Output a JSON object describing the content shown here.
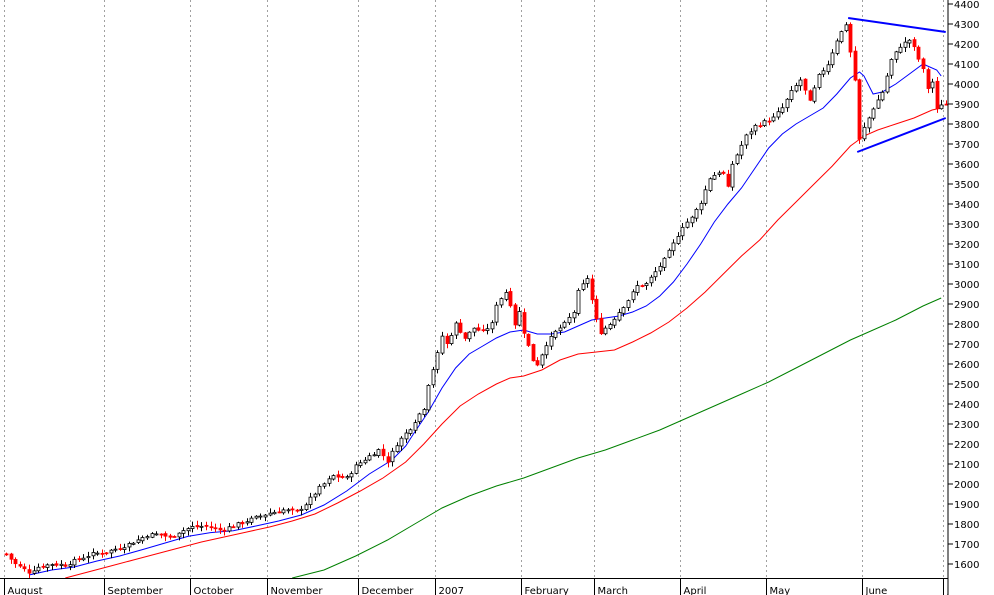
{
  "chart_data": {
    "type": "candlestick",
    "title": "",
    "xlabel": "",
    "ylabel": "",
    "y_axis_side": "right",
    "ylim": [
      1530,
      4420
    ],
    "y_ticks": [
      1600,
      1700,
      1800,
      1900,
      2000,
      2100,
      2200,
      2300,
      2400,
      2500,
      2600,
      2700,
      2800,
      2900,
      3000,
      3100,
      3200,
      3300,
      3400,
      3500,
      3600,
      3700,
      3800,
      3900,
      4000,
      4100,
      4200,
      4300,
      4400
    ],
    "grid": "vertical dotted lines at month boundaries",
    "x_labels": [
      {
        "label": "August",
        "bar": 0
      },
      {
        "label": "September",
        "bar": 22
      },
      {
        "label": "October",
        "bar": 41
      },
      {
        "label": "November",
        "bar": 58
      },
      {
        "label": "December",
        "bar": 78
      },
      {
        "label": "2007",
        "bar": 95
      },
      {
        "label": "February",
        "bar": 114
      },
      {
        "label": "March",
        "bar": 130
      },
      {
        "label": "April",
        "bar": 149
      },
      {
        "label": "May",
        "bar": 168
      },
      {
        "label": "June",
        "bar": 189
      },
      {
        "label": "J",
        "bar": 207
      }
    ],
    "bar_count": 208,
    "price_path": [
      [
        0,
        1650
      ],
      [
        2,
        1600
      ],
      [
        5,
        1560
      ],
      [
        7,
        1585
      ],
      [
        10,
        1600
      ],
      [
        13,
        1595
      ],
      [
        16,
        1625
      ],
      [
        19,
        1650
      ],
      [
        22,
        1660
      ],
      [
        26,
        1690
      ],
      [
        29,
        1720
      ],
      [
        31,
        1745
      ],
      [
        34,
        1750
      ],
      [
        36,
        1730
      ],
      [
        38,
        1760
      ],
      [
        41,
        1785
      ],
      [
        44,
        1790
      ],
      [
        47,
        1770
      ],
      [
        50,
        1790
      ],
      [
        53,
        1815
      ],
      [
        56,
        1840
      ],
      [
        58,
        1855
      ],
      [
        61,
        1870
      ],
      [
        64,
        1860
      ],
      [
        66,
        1900
      ],
      [
        69,
        1980
      ],
      [
        72,
        2040
      ],
      [
        75,
        2030
      ],
      [
        77,
        2090
      ],
      [
        80,
        2140
      ],
      [
        82,
        2170
      ],
      [
        84,
        2115
      ],
      [
        86,
        2200
      ],
      [
        89,
        2280
      ],
      [
        91,
        2350
      ],
      [
        92,
        2380
      ],
      [
        93,
        2500
      ],
      [
        95,
        2650
      ],
      [
        96,
        2740
      ],
      [
        97,
        2700
      ],
      [
        99,
        2800
      ],
      [
        101,
        2730
      ],
      [
        103,
        2780
      ],
      [
        105,
        2760
      ],
      [
        107,
        2800
      ],
      [
        108,
        2900
      ],
      [
        110,
        2960
      ],
      [
        111,
        2900
      ],
      [
        112,
        2800
      ],
      [
        113,
        2860
      ],
      [
        114,
        2760
      ],
      [
        116,
        2620
      ],
      [
        117,
        2600
      ],
      [
        119,
        2700
      ],
      [
        121,
        2760
      ],
      [
        123,
        2800
      ],
      [
        125,
        2860
      ],
      [
        126,
        2960
      ],
      [
        128,
        3030
      ],
      [
        129,
        2920
      ],
      [
        130,
        2820
      ],
      [
        131,
        2760
      ],
      [
        133,
        2800
      ],
      [
        135,
        2860
      ],
      [
        137,
        2920
      ],
      [
        139,
        2990
      ],
      [
        141,
        3000
      ],
      [
        143,
        3060
      ],
      [
        145,
        3120
      ],
      [
        147,
        3200
      ],
      [
        149,
        3290
      ],
      [
        151,
        3330
      ],
      [
        153,
        3410
      ],
      [
        155,
        3530
      ],
      [
        157,
        3560
      ],
      [
        158,
        3550
      ],
      [
        159,
        3480
      ],
      [
        160,
        3600
      ],
      [
        163,
        3740
      ],
      [
        165,
        3790
      ],
      [
        167,
        3810
      ],
      [
        169,
        3830
      ],
      [
        171,
        3880
      ],
      [
        173,
        3960
      ],
      [
        175,
        4020
      ],
      [
        177,
        3910
      ],
      [
        179,
        4040
      ],
      [
        181,
        4100
      ],
      [
        183,
        4220
      ],
      [
        185,
        4300
      ],
      [
        186,
        4160
      ],
      [
        187,
        4020
      ],
      [
        188,
        3720
      ],
      [
        189,
        3780
      ],
      [
        191,
        3880
      ],
      [
        193,
        3960
      ],
      [
        195,
        4120
      ],
      [
        197,
        4190
      ],
      [
        199,
        4220
      ],
      [
        200,
        4180
      ],
      [
        202,
        4070
      ],
      [
        203,
        3980
      ],
      [
        204,
        4010
      ],
      [
        205,
        3870
      ],
      [
        206,
        3900
      ]
    ],
    "moving_averages": [
      {
        "color": "#0000ff",
        "points": [
          [
            5,
            1545
          ],
          [
            10,
            1570
          ],
          [
            15,
            1585
          ],
          [
            20,
            1615
          ],
          [
            25,
            1640
          ],
          [
            30,
            1672
          ],
          [
            35,
            1705
          ],
          [
            40,
            1738
          ],
          [
            45,
            1757
          ],
          [
            50,
            1766
          ],
          [
            55,
            1790
          ],
          [
            60,
            1815
          ],
          [
            65,
            1845
          ],
          [
            70,
            1895
          ],
          [
            75,
            1965
          ],
          [
            80,
            2050
          ],
          [
            85,
            2120
          ],
          [
            88,
            2190
          ],
          [
            90,
            2260
          ],
          [
            93,
            2360
          ],
          [
            96,
            2480
          ],
          [
            99,
            2580
          ],
          [
            102,
            2650
          ],
          [
            105,
            2690
          ],
          [
            108,
            2730
          ],
          [
            111,
            2760
          ],
          [
            114,
            2770
          ],
          [
            117,
            2750
          ],
          [
            120,
            2750
          ],
          [
            123,
            2760
          ],
          [
            126,
            2790
          ],
          [
            129,
            2820
          ],
          [
            132,
            2830
          ],
          [
            135,
            2840
          ],
          [
            138,
            2860
          ],
          [
            141,
            2890
          ],
          [
            144,
            2940
          ],
          [
            147,
            3010
          ],
          [
            150,
            3100
          ],
          [
            153,
            3200
          ],
          [
            156,
            3310
          ],
          [
            159,
            3400
          ],
          [
            162,
            3480
          ],
          [
            165,
            3580
          ],
          [
            168,
            3680
          ],
          [
            171,
            3750
          ],
          [
            174,
            3800
          ],
          [
            177,
            3840
          ],
          [
            180,
            3880
          ],
          [
            183,
            3950
          ],
          [
            186,
            4030
          ],
          [
            188,
            4060
          ],
          [
            189,
            4040
          ],
          [
            191,
            3950
          ],
          [
            193,
            3960
          ],
          [
            196,
            4000
          ],
          [
            199,
            4050
          ],
          [
            202,
            4100
          ],
          [
            205,
            4070
          ],
          [
            206,
            4040
          ]
        ]
      },
      {
        "color": "#ff0000",
        "points": [
          [
            13,
            1530
          ],
          [
            18,
            1560
          ],
          [
            23,
            1590
          ],
          [
            28,
            1620
          ],
          [
            33,
            1650
          ],
          [
            38,
            1680
          ],
          [
            43,
            1710
          ],
          [
            48,
            1735
          ],
          [
            53,
            1760
          ],
          [
            58,
            1785
          ],
          [
            63,
            1815
          ],
          [
            68,
            1850
          ],
          [
            73,
            1905
          ],
          [
            78,
            1965
          ],
          [
            83,
            2030
          ],
          [
            88,
            2110
          ],
          [
            92,
            2200
          ],
          [
            96,
            2300
          ],
          [
            100,
            2390
          ],
          [
            104,
            2450
          ],
          [
            108,
            2500
          ],
          [
            111,
            2530
          ],
          [
            114,
            2540
          ],
          [
            118,
            2570
          ],
          [
            122,
            2620
          ],
          [
            126,
            2650
          ],
          [
            130,
            2660
          ],
          [
            134,
            2670
          ],
          [
            138,
            2710
          ],
          [
            142,
            2755
          ],
          [
            146,
            2810
          ],
          [
            150,
            2880
          ],
          [
            154,
            2960
          ],
          [
            158,
            3050
          ],
          [
            162,
            3140
          ],
          [
            166,
            3220
          ],
          [
            170,
            3320
          ],
          [
            174,
            3410
          ],
          [
            178,
            3500
          ],
          [
            182,
            3590
          ],
          [
            186,
            3690
          ],
          [
            189,
            3740
          ],
          [
            192,
            3770
          ],
          [
            196,
            3800
          ],
          [
            200,
            3830
          ],
          [
            204,
            3870
          ],
          [
            206,
            3880
          ]
        ]
      },
      {
        "color": "#008000",
        "points": [
          [
            63,
            1530
          ],
          [
            70,
            1570
          ],
          [
            77,
            1640
          ],
          [
            84,
            1720
          ],
          [
            90,
            1800
          ],
          [
            96,
            1880
          ],
          [
            102,
            1940
          ],
          [
            108,
            1990
          ],
          [
            114,
            2030
          ],
          [
            120,
            2080
          ],
          [
            126,
            2130
          ],
          [
            132,
            2170
          ],
          [
            138,
            2220
          ],
          [
            144,
            2270
          ],
          [
            150,
            2330
          ],
          [
            156,
            2390
          ],
          [
            162,
            2450
          ],
          [
            168,
            2510
          ],
          [
            174,
            2580
          ],
          [
            180,
            2650
          ],
          [
            186,
            2720
          ],
          [
            190,
            2760
          ],
          [
            196,
            2820
          ],
          [
            202,
            2890
          ],
          [
            206,
            2930
          ]
        ]
      }
    ],
    "trendlines": [
      {
        "color": "#0000ff",
        "from": [
          185.5,
          4330
        ],
        "to": [
          207,
          4260
        ]
      },
      {
        "color": "#0000ff",
        "from": [
          187.5,
          3660
        ],
        "to": [
          207,
          3830
        ]
      }
    ]
  }
}
